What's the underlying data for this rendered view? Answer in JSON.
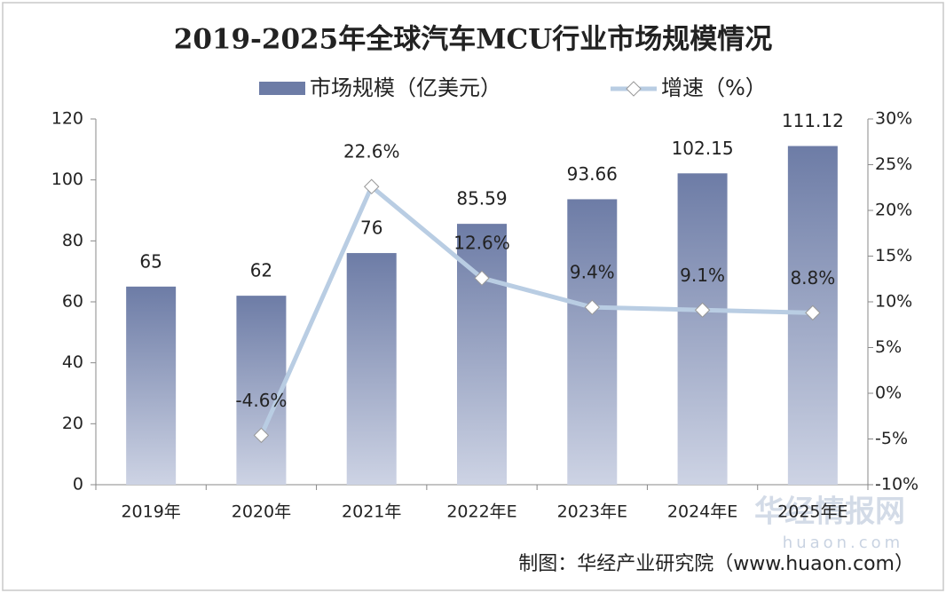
{
  "chart_data": {
    "type": "bar",
    "title": "2019-2025年全球汽车MCU行业市场规模情况",
    "categories": [
      "2019年",
      "2020年",
      "2021年",
      "2022年E",
      "2023年E",
      "2024年E",
      "2025年E"
    ],
    "series": [
      {
        "name": "市场规模（亿美元）",
        "type": "bar",
        "color": "#6d7ca6",
        "values": [
          65,
          62,
          76,
          85.59,
          93.66,
          102.15,
          111.12
        ]
      },
      {
        "name": "增速（%）",
        "type": "line",
        "axis": "y2",
        "color": "#b9cde3",
        "values": [
          null,
          -4.6,
          22.6,
          12.6,
          9.4,
          9.1,
          8.8
        ],
        "value_labels": [
          null,
          "-4.6%",
          "22.6%",
          "12.6%",
          "9.4%",
          "9.1%",
          "8.8%"
        ]
      }
    ],
    "ylim": [
      0,
      120
    ],
    "yticks": [
      0,
      20,
      40,
      60,
      80,
      100,
      120
    ],
    "y2lim": [
      -10,
      30
    ],
    "y2ticks": [
      {
        "value": -10,
        "label": "-10%"
      },
      {
        "value": -5,
        "label": "-5%"
      },
      {
        "value": 0,
        "label": "0%"
      },
      {
        "value": 5,
        "label": "5%"
      },
      {
        "value": 10,
        "label": "10%"
      },
      {
        "value": 15,
        "label": "15%"
      },
      {
        "value": 20,
        "label": "20%"
      },
      {
        "value": 25,
        "label": "25%"
      },
      {
        "value": 30,
        "label": "30%"
      }
    ],
    "source": "制图：华经产业研究院（www.huaon.com）",
    "watermark": "华经情报网",
    "watermark_url": "huaon.com"
  }
}
